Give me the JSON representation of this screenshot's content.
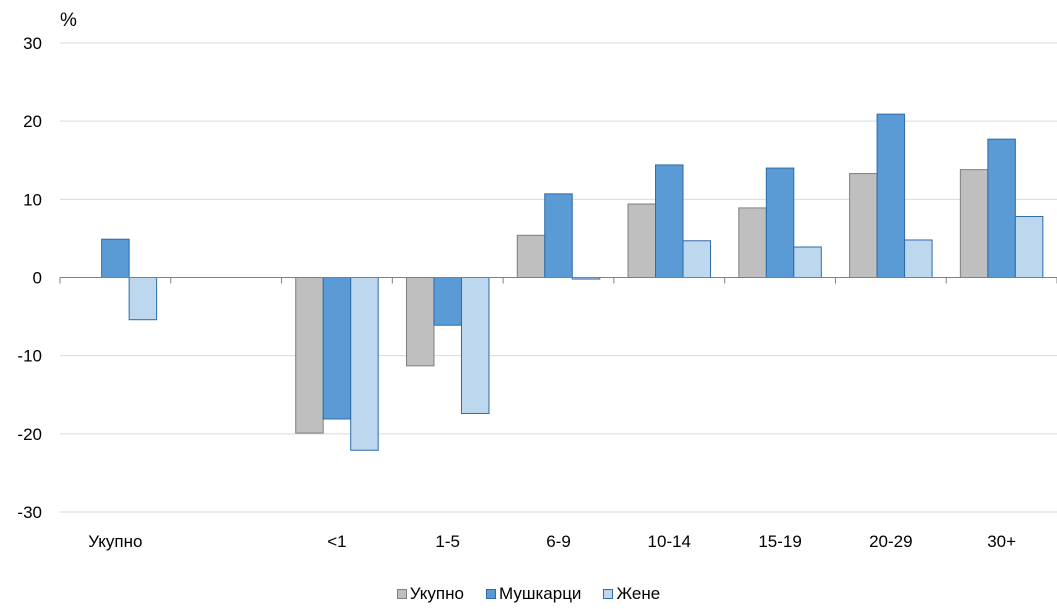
{
  "chart_data": {
    "type": "bar",
    "unit_label": "%",
    "categories": [
      "Укупно",
      "",
      "<1",
      "1-5",
      "6-9",
      "10-14",
      "15-19",
      "20-29",
      "30+"
    ],
    "series": [
      {
        "name": "Укупно",
        "values": [
          null,
          null,
          -19.9,
          -11.3,
          5.4,
          9.4,
          8.9,
          13.3,
          13.8
        ],
        "color": "#bfbfbf",
        "stroke": "#7f7f7f"
      },
      {
        "name": "Мушкарци",
        "values": [
          4.9,
          null,
          -18.1,
          -6.1,
          10.7,
          14.4,
          14.0,
          20.9,
          17.7
        ],
        "color": "#5b9bd5",
        "stroke": "#2e6ba8"
      },
      {
        "name": "Жене",
        "values": [
          -5.4,
          null,
          -22.1,
          -17.4,
          -0.2,
          4.7,
          3.9,
          4.8,
          7.8
        ],
        "color": "#bdd7ee",
        "stroke": "#2e6ba8"
      }
    ],
    "ylim": [
      -30,
      30
    ],
    "yticks": [
      30,
      20,
      10,
      0,
      -10,
      -20,
      -30
    ],
    "grid": true,
    "legend_position": "bottom"
  },
  "legend": {
    "item0": "Укупно",
    "item1": "Мушкарци",
    "item2": "Жене"
  }
}
